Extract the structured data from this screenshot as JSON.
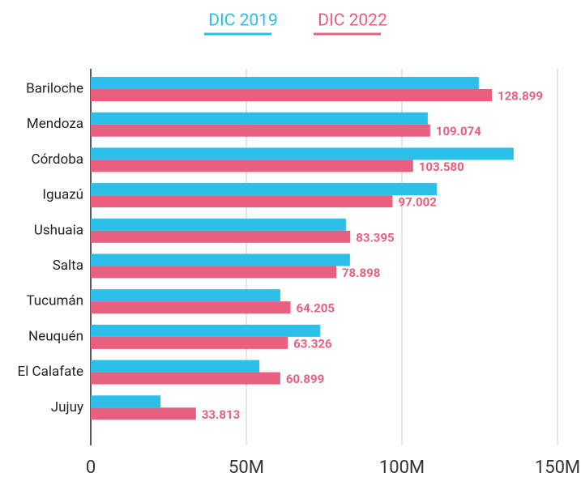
{
  "chart_data": {
    "type": "hbar",
    "categories": [
      "Bariloche",
      "Mendoza",
      "Córdoba",
      "Iguazú",
      "Ushuaia",
      "Salta",
      "Tucumán",
      "Neuquén",
      "El Calafate",
      "Jujuy"
    ],
    "series": [
      {
        "name": "DIC 2019",
        "color": "#2bbfea",
        "values": [
          124700000,
          108300000,
          135900000,
          111200000,
          82000000,
          83300000,
          60900000,
          73700000,
          54200000,
          22400000
        ]
      },
      {
        "name": "DIC 2022",
        "color": "#e8607f",
        "values": [
          128899000,
          109074000,
          103580000,
          97002000,
          83395000,
          78898000,
          64205000,
          63326000,
          60899000,
          33813000
        ],
        "value_labels": [
          "128.899",
          "109.074",
          "103.580",
          "97.002",
          "83.395",
          "78.898",
          "64.205",
          "63.326",
          "60.899",
          "33.813"
        ]
      }
    ],
    "xlim": [
      0,
      150000000
    ],
    "xticks": [
      0,
      {
        "value": 50000000,
        "label": "50M"
      },
      {
        "value": 100000000,
        "label": "100M"
      },
      {
        "value": 150000000,
        "label": "150M"
      }
    ],
    "grid": true,
    "legend": "top"
  }
}
